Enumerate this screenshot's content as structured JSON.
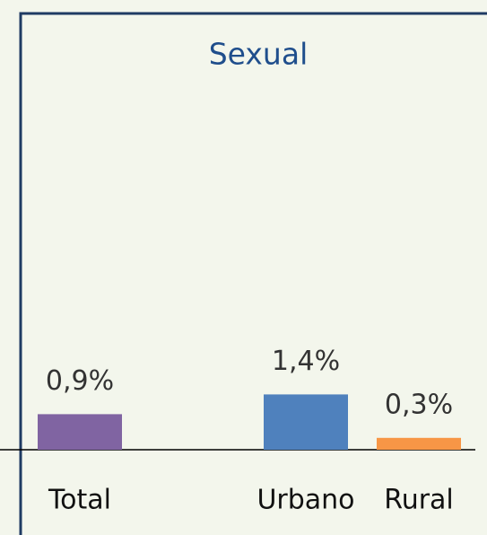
{
  "chart_data": {
    "type": "bar",
    "title": "Sexual",
    "categories": [
      "Total",
      null,
      "Urbano",
      "Rural"
    ],
    "values": [
      0.9,
      null,
      1.4,
      0.3
    ],
    "value_labels": [
      "0,9%",
      null,
      "1,4%",
      "0,3%"
    ],
    "colors": [
      "#8064a2",
      null,
      "#4f81bd",
      "#f79646"
    ]
  }
}
